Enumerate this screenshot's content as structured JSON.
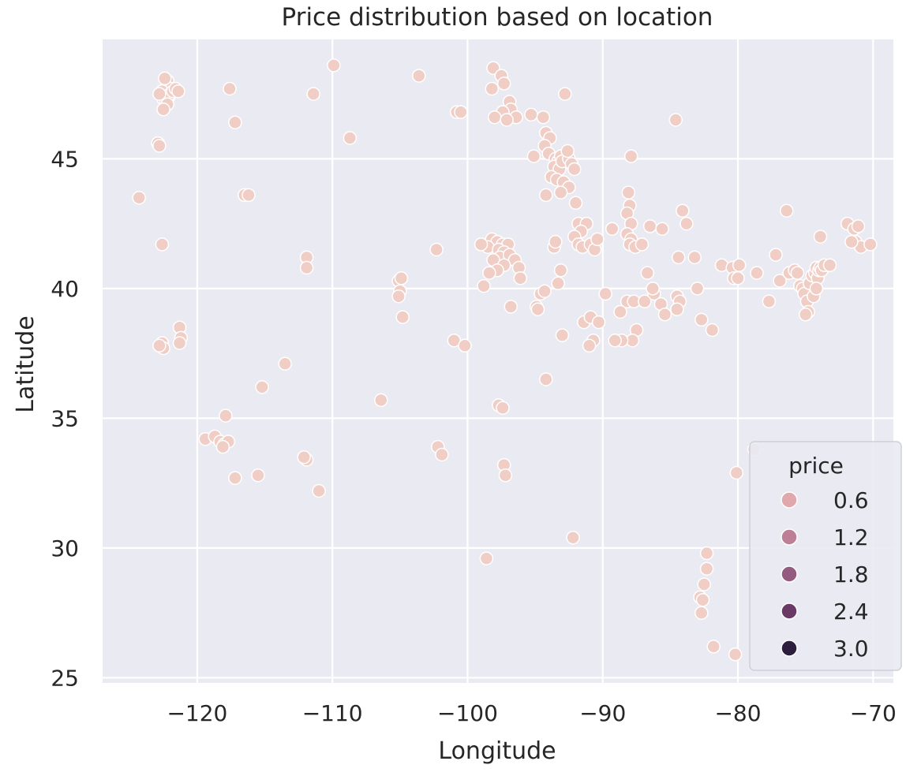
{
  "chart_data": {
    "type": "scatter",
    "title": "Price distribution based on location",
    "xlabel": "Longitude",
    "ylabel": "Latitude",
    "xlim": [
      -127,
      -68.5
    ],
    "ylim": [
      24.8,
      49.6
    ],
    "x_ticks": [
      -120,
      -110,
      -100,
      -90,
      -80,
      -70
    ],
    "x_tick_labels": [
      "−120",
      "−110",
      "−100",
      "−90",
      "−80",
      "−70"
    ],
    "y_ticks": [
      25,
      30,
      35,
      40,
      45
    ],
    "y_tick_labels": [
      "25",
      "30",
      "35",
      "40",
      "45"
    ],
    "grid": true,
    "background": "#eaeaf2",
    "point_color": "#f0cdc5",
    "point_edge": "#ffffff",
    "legend": {
      "title": "price",
      "placement": "lower-right",
      "entries": [
        {
          "label": "0.6",
          "color": "#e0a8ac"
        },
        {
          "label": "1.2",
          "color": "#bd7f95"
        },
        {
          "label": "1.8",
          "color": "#955a80"
        },
        {
          "label": "2.4",
          "color": "#6a3a66"
        },
        {
          "label": "3.0",
          "color": "#2d1e3e"
        }
      ]
    },
    "points": [
      [
        -122.3,
        47.6
      ],
      [
        -122.2,
        47.8
      ],
      [
        -122.4,
        47.5
      ],
      [
        -122.1,
        47.4
      ],
      [
        -122.5,
        47.3
      ],
      [
        -122.2,
        48.0
      ],
      [
        -121.9,
        47.7
      ],
      [
        -122.3,
        47.2
      ],
      [
        -122.6,
        47.6
      ],
      [
        -122.0,
        47.5
      ],
      [
        -121.8,
        47.6
      ],
      [
        -122.4,
        48.1
      ],
      [
        -122.2,
        47.1
      ],
      [
        -122.5,
        46.9
      ],
      [
        -121.6,
        47.7
      ],
      [
        -121.4,
        47.6
      ],
      [
        -122.8,
        47.5
      ],
      [
        -122.9,
        45.6
      ],
      [
        -122.8,
        45.5
      ],
      [
        -124.3,
        43.5
      ],
      [
        -122.6,
        41.7
      ],
      [
        -121.3,
        38.5
      ],
      [
        -121.2,
        38.1
      ],
      [
        -121.3,
        37.9
      ],
      [
        -122.6,
        37.9
      ],
      [
        -122.5,
        37.7
      ],
      [
        -122.8,
        37.8
      ],
      [
        -117.6,
        47.7
      ],
      [
        -117.2,
        46.4
      ],
      [
        -116.5,
        43.6
      ],
      [
        -116.2,
        43.6
      ],
      [
        -111.4,
        47.5
      ],
      [
        -109.9,
        48.6
      ],
      [
        -108.7,
        45.8
      ],
      [
        -103.6,
        48.2
      ],
      [
        -111.9,
        41.2
      ],
      [
        -111.9,
        40.8
      ],
      [
        -113.5,
        37.1
      ],
      [
        -115.2,
        36.2
      ],
      [
        -117.9,
        35.1
      ],
      [
        -119.4,
        34.2
      ],
      [
        -118.7,
        34.3
      ],
      [
        -118.3,
        34.1
      ],
      [
        -118.0,
        34.0
      ],
      [
        -117.7,
        34.1
      ],
      [
        -118.1,
        33.9
      ],
      [
        -117.2,
        32.7
      ],
      [
        -115.5,
        32.8
      ],
      [
        -111.9,
        33.4
      ],
      [
        -112.1,
        33.5
      ],
      [
        -111.0,
        32.2
      ],
      [
        -105.1,
        40.3
      ],
      [
        -104.9,
        40.4
      ],
      [
        -105.0,
        39.9
      ],
      [
        -105.1,
        39.7
      ],
      [
        -104.8,
        38.9
      ],
      [
        -106.4,
        35.7
      ],
      [
        -102.3,
        41.5
      ],
      [
        -101.0,
        38.0
      ],
      [
        -100.2,
        37.8
      ],
      [
        -102.2,
        33.9
      ],
      [
        -101.9,
        33.6
      ],
      [
        -98.6,
        29.6
      ],
      [
        -100.8,
        46.8
      ],
      [
        -100.5,
        46.8
      ],
      [
        -98.1,
        48.5
      ],
      [
        -97.5,
        48.2
      ],
      [
        -97.3,
        47.9
      ],
      [
        -98.2,
        47.7
      ],
      [
        -96.9,
        47.2
      ],
      [
        -96.8,
        46.9
      ],
      [
        -97.4,
        46.8
      ],
      [
        -96.4,
        46.6
      ],
      [
        -98.0,
        46.6
      ],
      [
        -97.1,
        46.5
      ],
      [
        -95.3,
        46.7
      ],
      [
        -94.4,
        46.6
      ],
      [
        -92.8,
        47.5
      ],
      [
        -94.2,
        46.0
      ],
      [
        -93.9,
        45.8
      ],
      [
        -94.3,
        45.5
      ],
      [
        -94.0,
        45.2
      ],
      [
        -93.5,
        45.0
      ],
      [
        -93.3,
        44.9
      ],
      [
        -93.1,
        45.1
      ],
      [
        -93.6,
        44.7
      ],
      [
        -93.2,
        44.6
      ],
      [
        -93.0,
        44.9
      ],
      [
        -92.5,
        45.0
      ],
      [
        -92.3,
        44.8
      ],
      [
        -92.1,
        44.6
      ],
      [
        -93.8,
        44.3
      ],
      [
        -93.4,
        44.2
      ],
      [
        -92.9,
        44.1
      ],
      [
        -92.5,
        43.9
      ],
      [
        -93.1,
        43.7
      ],
      [
        -94.2,
        43.6
      ],
      [
        -92.0,
        43.3
      ],
      [
        -95.1,
        45.1
      ],
      [
        -92.6,
        45.3
      ],
      [
        -98.2,
        41.9
      ],
      [
        -97.8,
        41.8
      ],
      [
        -97.4,
        41.7
      ],
      [
        -97.0,
        41.7
      ],
      [
        -98.5,
        41.6
      ],
      [
        -97.7,
        41.5
      ],
      [
        -97.3,
        41.4
      ],
      [
        -97.6,
        41.2
      ],
      [
        -98.1,
        41.1
      ],
      [
        -96.9,
        41.3
      ],
      [
        -96.5,
        41.1
      ],
      [
        -96.2,
        40.8
      ],
      [
        -96.1,
        40.4
      ],
      [
        -97.3,
        40.9
      ],
      [
        -97.8,
        40.7
      ],
      [
        -98.4,
        40.6
      ],
      [
        -99.0,
        41.7
      ],
      [
        -98.8,
        40.1
      ],
      [
        -96.8,
        39.3
      ],
      [
        -93.6,
        41.6
      ],
      [
        -93.5,
        41.8
      ],
      [
        -93.1,
        40.7
      ],
      [
        -93.3,
        40.2
      ],
      [
        -94.6,
        39.8
      ],
      [
        -94.3,
        39.9
      ],
      [
        -94.9,
        39.3
      ],
      [
        -94.8,
        39.2
      ],
      [
        -94.2,
        36.5
      ],
      [
        -97.7,
        35.5
      ],
      [
        -97.4,
        35.4
      ],
      [
        -97.3,
        33.2
      ],
      [
        -97.2,
        32.8
      ],
      [
        -93.0,
        38.2
      ],
      [
        -92.2,
        30.4
      ],
      [
        -91.8,
        42.5
      ],
      [
        -91.2,
        42.5
      ],
      [
        -91.6,
        42.2
      ],
      [
        -92.1,
        42.0
      ],
      [
        -91.8,
        41.7
      ],
      [
        -91.5,
        41.6
      ],
      [
        -90.9,
        41.7
      ],
      [
        -90.6,
        41.5
      ],
      [
        -90.4,
        41.9
      ],
      [
        -89.3,
        42.3
      ],
      [
        -88.1,
        43.7
      ],
      [
        -88.0,
        43.2
      ],
      [
        -88.2,
        42.9
      ],
      [
        -87.9,
        42.5
      ],
      [
        -88.2,
        42.1
      ],
      [
        -87.9,
        41.9
      ],
      [
        -88.0,
        41.7
      ],
      [
        -87.6,
        41.6
      ],
      [
        -87.1,
        41.7
      ],
      [
        -86.5,
        42.4
      ],
      [
        -85.6,
        42.3
      ],
      [
        -84.4,
        41.2
      ],
      [
        -84.1,
        43.0
      ],
      [
        -83.8,
        42.5
      ],
      [
        -87.9,
        45.1
      ],
      [
        -84.6,
        46.5
      ],
      [
        -91.4,
        38.7
      ],
      [
        -90.9,
        38.9
      ],
      [
        -90.3,
        38.7
      ],
      [
        -90.7,
        38.0
      ],
      [
        -91.0,
        37.8
      ],
      [
        -89.8,
        39.8
      ],
      [
        -88.2,
        39.5
      ],
      [
        -87.7,
        39.5
      ],
      [
        -86.7,
        40.6
      ],
      [
        -86.2,
        39.8
      ],
      [
        -86.9,
        39.5
      ],
      [
        -86.3,
        40.0
      ],
      [
        -85.7,
        39.4
      ],
      [
        -85.4,
        39.0
      ],
      [
        -84.5,
        39.7
      ],
      [
        -84.3,
        39.5
      ],
      [
        -84.5,
        39.2
      ],
      [
        -83.0,
        40.0
      ],
      [
        -82.7,
        38.8
      ],
      [
        -81.9,
        38.4
      ],
      [
        -87.5,
        38.4
      ],
      [
        -87.8,
        38.0
      ],
      [
        -88.6,
        38.0
      ],
      [
        -89.1,
        38.0
      ],
      [
        -88.7,
        39.1
      ],
      [
        -83.2,
        41.2
      ],
      [
        -81.2,
        40.9
      ],
      [
        -80.4,
        40.8
      ],
      [
        -80.3,
        40.4
      ],
      [
        -80.0,
        40.4
      ],
      [
        -79.9,
        40.9
      ],
      [
        -78.6,
        40.6
      ],
      [
        -77.7,
        39.5
      ],
      [
        -77.2,
        41.3
      ],
      [
        -76.9,
        40.3
      ],
      [
        -76.4,
        43.0
      ],
      [
        -76.2,
        40.6
      ],
      [
        -75.8,
        40.7
      ],
      [
        -75.6,
        40.6
      ],
      [
        -75.4,
        40.1
      ],
      [
        -75.2,
        40.0
      ],
      [
        -75.1,
        39.8
      ],
      [
        -74.9,
        39.5
      ],
      [
        -74.8,
        39.1
      ],
      [
        -75.0,
        39.0
      ],
      [
        -74.7,
        40.2
      ],
      [
        -74.5,
        40.5
      ],
      [
        -74.3,
        40.6
      ],
      [
        -74.2,
        40.8
      ],
      [
        -74.1,
        40.4
      ],
      [
        -74.0,
        40.7
      ],
      [
        -73.9,
        40.8
      ],
      [
        -73.8,
        40.7
      ],
      [
        -74.4,
        39.7
      ],
      [
        -74.2,
        40.0
      ],
      [
        -73.6,
        40.9
      ],
      [
        -73.2,
        40.9
      ],
      [
        -73.9,
        42.0
      ],
      [
        -71.9,
        42.5
      ],
      [
        -71.4,
        42.3
      ],
      [
        -71.1,
        42.4
      ],
      [
        -71.3,
        41.8
      ],
      [
        -70.9,
        41.6
      ],
      [
        -71.6,
        41.8
      ],
      [
        -70.2,
        41.7
      ],
      [
        -78.8,
        33.8
      ],
      [
        -80.1,
        32.9
      ],
      [
        -82.3,
        29.8
      ],
      [
        -82.3,
        29.2
      ],
      [
        -82.5,
        28.6
      ],
      [
        -82.8,
        28.1
      ],
      [
        -82.6,
        28.0
      ],
      [
        -82.7,
        27.5
      ],
      [
        -81.8,
        26.2
      ],
      [
        -80.2,
        25.9
      ]
    ]
  }
}
